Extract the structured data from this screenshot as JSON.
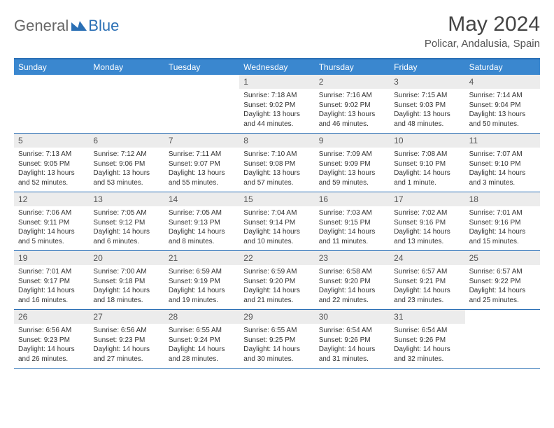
{
  "logo": {
    "text1": "General",
    "text2": "Blue"
  },
  "title": "May 2024",
  "location": "Policar, Andalusia, Spain",
  "colors": {
    "header_bg": "#3a87cf",
    "border": "#2a6fb5",
    "daynum_bg": "#ececec",
    "text": "#333333"
  },
  "day_headers": [
    "Sunday",
    "Monday",
    "Tuesday",
    "Wednesday",
    "Thursday",
    "Friday",
    "Saturday"
  ],
  "weeks": [
    [
      {
        "n": "",
        "sr": "",
        "ss": "",
        "dl": ""
      },
      {
        "n": "",
        "sr": "",
        "ss": "",
        "dl": ""
      },
      {
        "n": "",
        "sr": "",
        "ss": "",
        "dl": ""
      },
      {
        "n": "1",
        "sr": "Sunrise: 7:18 AM",
        "ss": "Sunset: 9:02 PM",
        "dl": "Daylight: 13 hours and 44 minutes."
      },
      {
        "n": "2",
        "sr": "Sunrise: 7:16 AM",
        "ss": "Sunset: 9:02 PM",
        "dl": "Daylight: 13 hours and 46 minutes."
      },
      {
        "n": "3",
        "sr": "Sunrise: 7:15 AM",
        "ss": "Sunset: 9:03 PM",
        "dl": "Daylight: 13 hours and 48 minutes."
      },
      {
        "n": "4",
        "sr": "Sunrise: 7:14 AM",
        "ss": "Sunset: 9:04 PM",
        "dl": "Daylight: 13 hours and 50 minutes."
      }
    ],
    [
      {
        "n": "5",
        "sr": "Sunrise: 7:13 AM",
        "ss": "Sunset: 9:05 PM",
        "dl": "Daylight: 13 hours and 52 minutes."
      },
      {
        "n": "6",
        "sr": "Sunrise: 7:12 AM",
        "ss": "Sunset: 9:06 PM",
        "dl": "Daylight: 13 hours and 53 minutes."
      },
      {
        "n": "7",
        "sr": "Sunrise: 7:11 AM",
        "ss": "Sunset: 9:07 PM",
        "dl": "Daylight: 13 hours and 55 minutes."
      },
      {
        "n": "8",
        "sr": "Sunrise: 7:10 AM",
        "ss": "Sunset: 9:08 PM",
        "dl": "Daylight: 13 hours and 57 minutes."
      },
      {
        "n": "9",
        "sr": "Sunrise: 7:09 AM",
        "ss": "Sunset: 9:09 PM",
        "dl": "Daylight: 13 hours and 59 minutes."
      },
      {
        "n": "10",
        "sr": "Sunrise: 7:08 AM",
        "ss": "Sunset: 9:10 PM",
        "dl": "Daylight: 14 hours and 1 minute."
      },
      {
        "n": "11",
        "sr": "Sunrise: 7:07 AM",
        "ss": "Sunset: 9:10 PM",
        "dl": "Daylight: 14 hours and 3 minutes."
      }
    ],
    [
      {
        "n": "12",
        "sr": "Sunrise: 7:06 AM",
        "ss": "Sunset: 9:11 PM",
        "dl": "Daylight: 14 hours and 5 minutes."
      },
      {
        "n": "13",
        "sr": "Sunrise: 7:05 AM",
        "ss": "Sunset: 9:12 PM",
        "dl": "Daylight: 14 hours and 6 minutes."
      },
      {
        "n": "14",
        "sr": "Sunrise: 7:05 AM",
        "ss": "Sunset: 9:13 PM",
        "dl": "Daylight: 14 hours and 8 minutes."
      },
      {
        "n": "15",
        "sr": "Sunrise: 7:04 AM",
        "ss": "Sunset: 9:14 PM",
        "dl": "Daylight: 14 hours and 10 minutes."
      },
      {
        "n": "16",
        "sr": "Sunrise: 7:03 AM",
        "ss": "Sunset: 9:15 PM",
        "dl": "Daylight: 14 hours and 11 minutes."
      },
      {
        "n": "17",
        "sr": "Sunrise: 7:02 AM",
        "ss": "Sunset: 9:16 PM",
        "dl": "Daylight: 14 hours and 13 minutes."
      },
      {
        "n": "18",
        "sr": "Sunrise: 7:01 AM",
        "ss": "Sunset: 9:16 PM",
        "dl": "Daylight: 14 hours and 15 minutes."
      }
    ],
    [
      {
        "n": "19",
        "sr": "Sunrise: 7:01 AM",
        "ss": "Sunset: 9:17 PM",
        "dl": "Daylight: 14 hours and 16 minutes."
      },
      {
        "n": "20",
        "sr": "Sunrise: 7:00 AM",
        "ss": "Sunset: 9:18 PM",
        "dl": "Daylight: 14 hours and 18 minutes."
      },
      {
        "n": "21",
        "sr": "Sunrise: 6:59 AM",
        "ss": "Sunset: 9:19 PM",
        "dl": "Daylight: 14 hours and 19 minutes."
      },
      {
        "n": "22",
        "sr": "Sunrise: 6:59 AM",
        "ss": "Sunset: 9:20 PM",
        "dl": "Daylight: 14 hours and 21 minutes."
      },
      {
        "n": "23",
        "sr": "Sunrise: 6:58 AM",
        "ss": "Sunset: 9:20 PM",
        "dl": "Daylight: 14 hours and 22 minutes."
      },
      {
        "n": "24",
        "sr": "Sunrise: 6:57 AM",
        "ss": "Sunset: 9:21 PM",
        "dl": "Daylight: 14 hours and 23 minutes."
      },
      {
        "n": "25",
        "sr": "Sunrise: 6:57 AM",
        "ss": "Sunset: 9:22 PM",
        "dl": "Daylight: 14 hours and 25 minutes."
      }
    ],
    [
      {
        "n": "26",
        "sr": "Sunrise: 6:56 AM",
        "ss": "Sunset: 9:23 PM",
        "dl": "Daylight: 14 hours and 26 minutes."
      },
      {
        "n": "27",
        "sr": "Sunrise: 6:56 AM",
        "ss": "Sunset: 9:23 PM",
        "dl": "Daylight: 14 hours and 27 minutes."
      },
      {
        "n": "28",
        "sr": "Sunrise: 6:55 AM",
        "ss": "Sunset: 9:24 PM",
        "dl": "Daylight: 14 hours and 28 minutes."
      },
      {
        "n": "29",
        "sr": "Sunrise: 6:55 AM",
        "ss": "Sunset: 9:25 PM",
        "dl": "Daylight: 14 hours and 30 minutes."
      },
      {
        "n": "30",
        "sr": "Sunrise: 6:54 AM",
        "ss": "Sunset: 9:26 PM",
        "dl": "Daylight: 14 hours and 31 minutes."
      },
      {
        "n": "31",
        "sr": "Sunrise: 6:54 AM",
        "ss": "Sunset: 9:26 PM",
        "dl": "Daylight: 14 hours and 32 minutes."
      },
      {
        "n": "",
        "sr": "",
        "ss": "",
        "dl": ""
      }
    ]
  ]
}
